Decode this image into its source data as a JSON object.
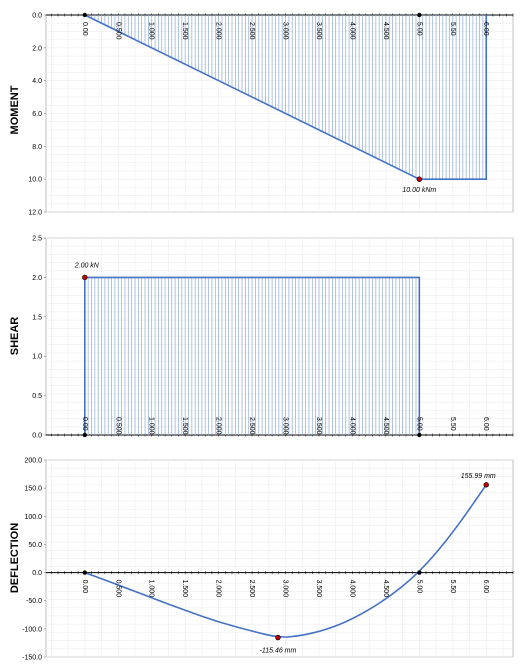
{
  "chart_data": [
    {
      "type": "area",
      "ylabel": "MOMENT",
      "ylim": [
        0,
        12
      ],
      "y_inverted": true,
      "yticks": [
        "0.0",
        "2.0",
        "4.0",
        "6.0",
        "8.0",
        "10.0",
        "12.0"
      ],
      "xticks": [
        "0.00",
        "0.500",
        "1.000",
        "1.500",
        "2.000",
        "2.500",
        "3.000",
        "3.500",
        "4.000",
        "4.500",
        "5.00",
        "5.50",
        "6.00"
      ],
      "xlim": [
        0,
        6
      ],
      "points": [
        [
          0,
          0
        ],
        [
          5,
          10
        ],
        [
          6,
          10
        ]
      ],
      "markers": [
        [
          0,
          0
        ],
        [
          5,
          0
        ]
      ],
      "annotation": {
        "x": 5,
        "y": 10,
        "text": "10.00 kNm"
      },
      "grid": true,
      "color": "#4472c4"
    },
    {
      "type": "area",
      "ylabel": "SHEAR",
      "ylim": [
        0,
        2.5
      ],
      "yticks": [
        "0.0",
        "0.5",
        "1.0",
        "1.5",
        "2.0",
        "2.5"
      ],
      "xticks": [
        "0.00",
        "0.500",
        "1.000",
        "1.500",
        "2.000",
        "2.500",
        "3.000",
        "3.500",
        "4.000",
        "4.500",
        "5.00",
        "5.50",
        "6.00"
      ],
      "xlim": [
        0,
        6
      ],
      "points": [
        [
          0,
          2
        ],
        [
          5,
          2
        ]
      ],
      "markers": [
        [
          0,
          0
        ],
        [
          5,
          0
        ]
      ],
      "annotation": {
        "x": 0,
        "y": 2,
        "text": "2.00 kN"
      },
      "grid": true,
      "color": "#4472c4"
    },
    {
      "type": "line",
      "ylabel": "DEFLECTION",
      "ylim": [
        -150,
        200
      ],
      "yticks": [
        "200.0",
        "150.0",
        "100.0",
        "50.0",
        "0.0",
        "-50.0",
        "-100.0",
        "-150.0"
      ],
      "xticks": [
        "0.00",
        "0.500",
        "1.000",
        "1.500",
        "2.000",
        "2.500",
        "3.000",
        "3.500",
        "4.000",
        "4.500",
        "5.00",
        "5.50",
        "6.00"
      ],
      "xlim": [
        0,
        6
      ],
      "points": [
        [
          0,
          0
        ],
        [
          0.5,
          -22
        ],
        [
          1,
          -45
        ],
        [
          1.5,
          -67
        ],
        [
          2,
          -88
        ],
        [
          2.5,
          -104
        ],
        [
          2.8868,
          -115.46
        ],
        [
          3.2,
          -113
        ],
        [
          3.6,
          -102
        ],
        [
          4,
          -83
        ],
        [
          4.5,
          -48
        ],
        [
          5,
          0
        ],
        [
          5.5,
          70
        ],
        [
          6,
          155.99
        ]
      ],
      "markers": [
        [
          0,
          0
        ],
        [
          5,
          0
        ]
      ],
      "annotations": [
        {
          "x": 2.8868,
          "y": -115.46,
          "text": "-115.46 mm"
        },
        {
          "x": 6,
          "y": 155.99,
          "text": "155.99 mm"
        }
      ],
      "grid": true,
      "color": "#4472c4"
    }
  ]
}
